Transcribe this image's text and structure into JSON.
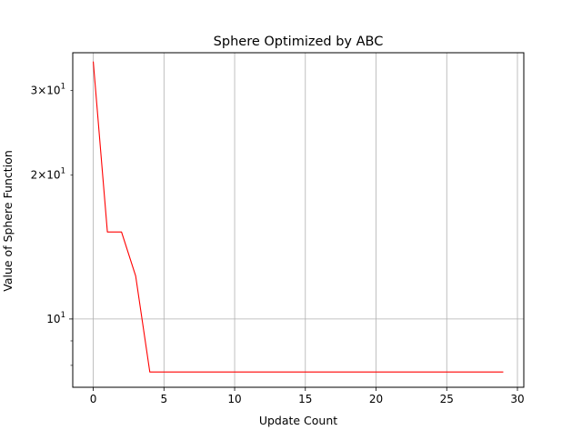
{
  "chart_data": {
    "type": "line",
    "title": "Sphere Optimized by ABC",
    "xlabel": "Update Count",
    "ylabel": "Value of Sphere Function",
    "yscale": "log",
    "xlim": [
      -1.45,
      30.45
    ],
    "ylim": [
      7.2,
      36.0
    ],
    "grid": true,
    "line_color": "#ff0000",
    "grid_color": "#b0b0b0",
    "xticks": [
      {
        "value": 0,
        "label": "0"
      },
      {
        "value": 5,
        "label": "5"
      },
      {
        "value": 10,
        "label": "10"
      },
      {
        "value": 15,
        "label": "15"
      },
      {
        "value": 20,
        "label": "20"
      },
      {
        "value": 25,
        "label": "25"
      },
      {
        "value": 30,
        "label": "30"
      }
    ],
    "yticks_major": [
      {
        "value": 10,
        "label": "10",
        "exp": "1"
      }
    ],
    "yticks_minor_labeled": [
      {
        "value": 20,
        "coef": "2",
        "label": "10",
        "exp": "1"
      },
      {
        "value": 30,
        "coef": "3",
        "label": "10",
        "exp": "1"
      }
    ],
    "yticks_minor_unlabeled": [
      8,
      9
    ],
    "series": [
      {
        "x": [
          0,
          1,
          2,
          3,
          4,
          5,
          6,
          7,
          8,
          9,
          10,
          11,
          12,
          13,
          14,
          15,
          16,
          17,
          18,
          19,
          20,
          21,
          22,
          23,
          24,
          25,
          26,
          27,
          28,
          29
        ],
        "values": [
          34.5,
          15.2,
          15.2,
          12.3,
          7.75,
          7.75,
          7.75,
          7.75,
          7.75,
          7.75,
          7.75,
          7.75,
          7.75,
          7.75,
          7.75,
          7.75,
          7.75,
          7.75,
          7.75,
          7.75,
          7.75,
          7.75,
          7.75,
          7.75,
          7.75,
          7.75,
          7.75,
          7.75,
          7.75,
          7.75
        ]
      }
    ]
  }
}
